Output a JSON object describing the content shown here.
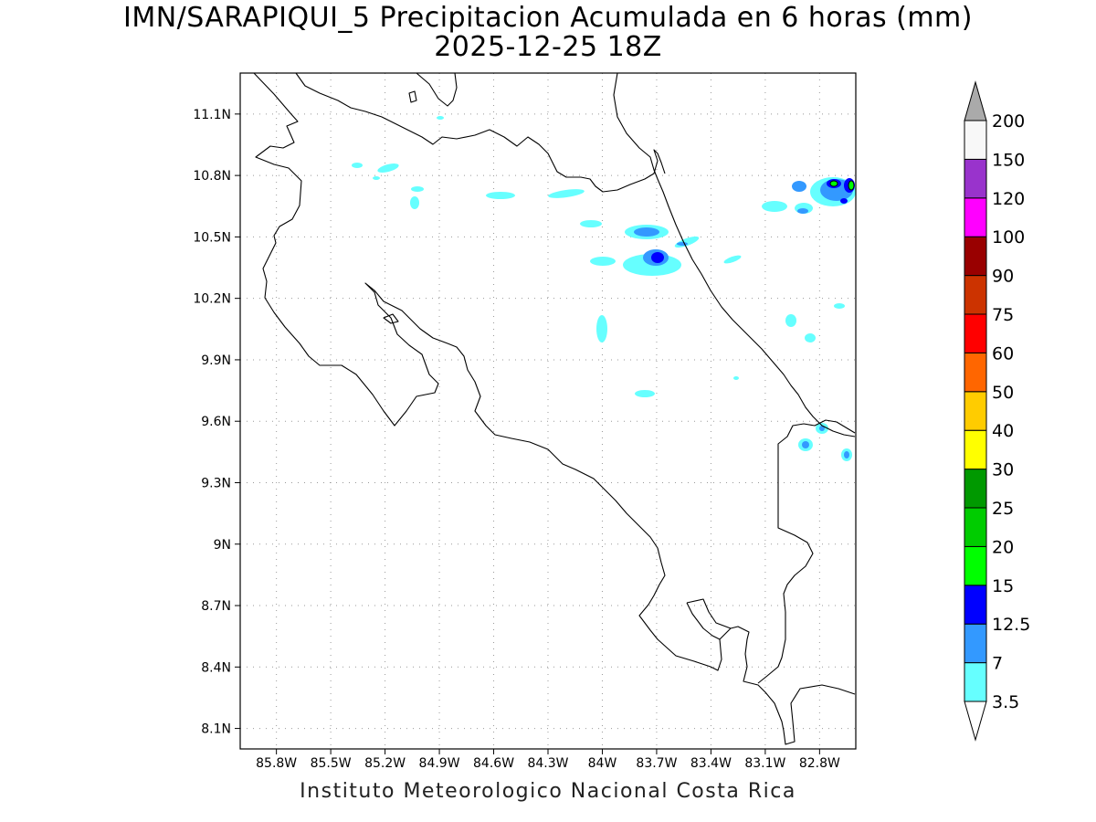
{
  "title": "IMN/SARAPIQUI_5 Precipitacion Acumulada en 6 horas (mm)",
  "subtitle": "2025-12-25 18Z",
  "footer": "Instituto Meteorologico Nacional Costa Rica",
  "map": {
    "lon_range": [
      -86.0,
      -82.6
    ],
    "lat_range": [
      8.0,
      11.3
    ],
    "lon_ticks": [
      "85.8W",
      "85.5W",
      "85.2W",
      "84.9W",
      "84.6W",
      "84.3W",
      "84W",
      "83.7W",
      "83.4W",
      "83.1W",
      "82.8W"
    ],
    "lat_ticks": [
      "11.1N",
      "10.8N",
      "10.5N",
      "10.2N",
      "9.9N",
      "9.6N",
      "9.3N",
      "9N",
      "8.7N",
      "8.4N",
      "8.1N"
    ],
    "grid": true
  },
  "colorbar": {
    "labels": [
      "3.5",
      "7",
      "12.5",
      "15",
      "20",
      "25",
      "30",
      "40",
      "50",
      "60",
      "75",
      "90",
      "100",
      "120",
      "150",
      "200"
    ],
    "colors": [
      "#66ffff",
      "#3399ff",
      "#0000ff",
      "#00ff00",
      "#00cc00",
      "#009900",
      "#ffff00",
      "#ffcc00",
      "#ff6600",
      "#ff0000",
      "#cc3300",
      "#990000",
      "#ff00ff",
      "#9933cc",
      "#f8f8f8"
    ],
    "under_color": "#ffffff",
    "over_color": "#aaaaaa"
  }
}
